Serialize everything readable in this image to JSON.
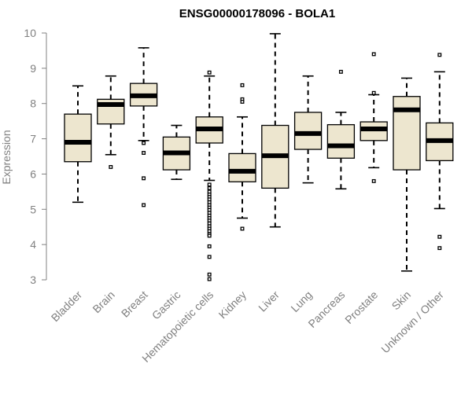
{
  "chart_data": {
    "type": "boxplot",
    "title": "ENSG00000178096 - BOLA1",
    "xlabel": "",
    "ylabel": "Expression",
    "ylim": [
      3,
      10
    ],
    "yticks": [
      "3",
      "4",
      "5",
      "6",
      "7",
      "8",
      "9",
      "10"
    ],
    "box_color": "#EDE6CF",
    "axis_color": "#808080",
    "categories": [
      "Bladder",
      "Brain",
      "Breast",
      "Gastric",
      "Hematopoietic cells",
      "Kidney",
      "Liver",
      "Lung",
      "Pancreas",
      "Prostate",
      "Skin",
      "Unknown / Other"
    ],
    "boxes": [
      {
        "name": "Bladder",
        "min": 5.2,
        "q1": 6.35,
        "median": 6.9,
        "q3": 7.7,
        "max": 8.5,
        "outliers": []
      },
      {
        "name": "Brain",
        "min": 6.55,
        "q1": 7.42,
        "median": 7.97,
        "q3": 8.12,
        "max": 8.78,
        "outliers": [
          6.2
        ]
      },
      {
        "name": "Breast",
        "min": 6.95,
        "q1": 7.93,
        "median": 8.22,
        "q3": 8.57,
        "max": 9.58,
        "outliers": [
          6.88,
          6.6,
          5.88,
          5.12
        ]
      },
      {
        "name": "Gastric",
        "min": 5.85,
        "q1": 6.12,
        "median": 6.6,
        "q3": 7.05,
        "max": 7.38,
        "outliers": []
      },
      {
        "name": "Hematopoietic cells",
        "min": 5.82,
        "q1": 6.88,
        "median": 7.28,
        "q3": 7.62,
        "max": 8.78,
        "outliers": [
          8.88,
          5.7,
          5.6,
          5.5,
          5.42,
          5.35,
          5.28,
          5.2,
          5.12,
          5.05,
          4.98,
          4.9,
          4.82,
          4.75,
          4.68,
          4.6,
          4.52,
          4.45,
          4.38,
          4.3,
          4.25,
          3.95,
          3.65,
          3.15,
          3.02
        ]
      },
      {
        "name": "Kidney",
        "min": 4.75,
        "q1": 5.78,
        "median": 6.08,
        "q3": 6.58,
        "max": 7.62,
        "outliers": [
          8.52,
          8.12,
          8.05,
          4.45
        ]
      },
      {
        "name": "Liver",
        "min": 4.5,
        "q1": 5.6,
        "median": 6.52,
        "q3": 7.38,
        "max": 9.98,
        "outliers": []
      },
      {
        "name": "Lung",
        "min": 5.75,
        "q1": 6.7,
        "median": 7.15,
        "q3": 7.75,
        "max": 8.78,
        "outliers": []
      },
      {
        "name": "Pancreas",
        "min": 5.58,
        "q1": 6.45,
        "median": 6.8,
        "q3": 7.4,
        "max": 7.75,
        "outliers": [
          8.9
        ]
      },
      {
        "name": "Prostate",
        "min": 6.18,
        "q1": 6.95,
        "median": 7.28,
        "q3": 7.48,
        "max": 8.25,
        "outliers": [
          9.4,
          8.3,
          5.8
        ]
      },
      {
        "name": "Skin",
        "min": 3.25,
        "q1": 6.12,
        "median": 7.82,
        "q3": 8.2,
        "max": 8.72,
        "outliers": []
      },
      {
        "name": "Unknown / Other",
        "min": 5.02,
        "q1": 6.38,
        "median": 6.95,
        "q3": 7.45,
        "max": 8.9,
        "outliers": [
          9.38,
          4.22,
          3.9
        ]
      }
    ]
  }
}
